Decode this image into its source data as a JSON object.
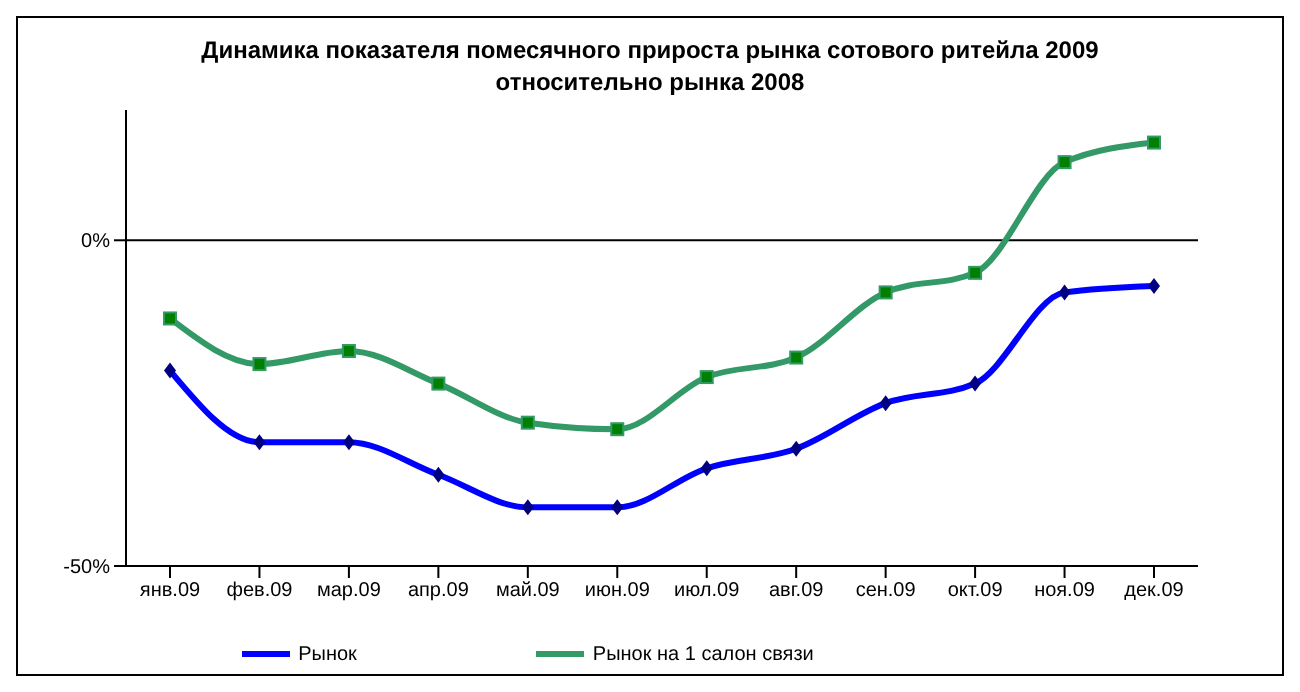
{
  "chart_data": {
    "type": "line",
    "title": "Динамика показателя помесячного прироста рынка сотового ритейла 2009 относительно рынка 2008",
    "categories": [
      "янв.09",
      "фев.09",
      "мар.09",
      "апр.09",
      "май.09",
      "июн.09",
      "июл.09",
      "авг.09",
      "сен.09",
      "окт.09",
      "ноя.09",
      "дек.09"
    ],
    "series": [
      {
        "name": "Рынок",
        "color": "#0000ff",
        "marker": "diamond",
        "values": [
          -20,
          -31,
          -31,
          -36,
          -41,
          -41,
          -35,
          -32,
          -25,
          -22,
          -8,
          -7
        ]
      },
      {
        "name": "Рынок на 1 салон связи",
        "color": "#339966",
        "marker": "square",
        "values": [
          -12,
          -19,
          -17,
          -22,
          -28,
          -29,
          -21,
          -18,
          -8,
          -5,
          12,
          15
        ]
      }
    ],
    "ylim": [
      -50,
      20
    ],
    "yticks": [
      {
        "value": -50,
        "label": "-50%"
      },
      {
        "value": 0,
        "label": "0%"
      }
    ],
    "ref_lines": [
      {
        "axis": "y",
        "value": 0,
        "color": "#000000"
      }
    ],
    "grid": false,
    "legend": "bottom"
  }
}
